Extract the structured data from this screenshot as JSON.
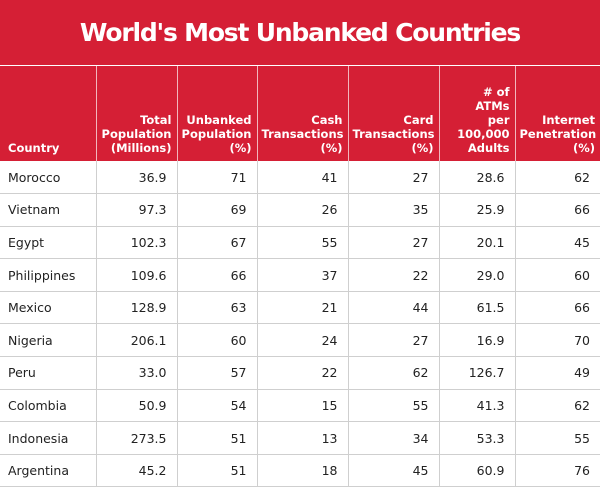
{
  "title": "World's Most Unbanked Countries",
  "colors": {
    "header_bg": "#d51f35",
    "header_text": "#ffffff",
    "body_text": "#222222",
    "grid": "#cfcfcf"
  },
  "headers": [
    [
      "Country"
    ],
    [
      "Total",
      "Population",
      "(Millions)"
    ],
    [
      "Unbanked",
      "Population",
      "(%)"
    ],
    [
      "Cash",
      "Transactions",
      "(%)"
    ],
    [
      "Card",
      "Transactions",
      "(%)"
    ],
    [
      "# of",
      "ATMs",
      "per",
      "100,000",
      "Adults"
    ],
    [
      "Internet",
      "Penetration",
      "(%)"
    ]
  ],
  "rows": [
    [
      "Morocco",
      "36.9",
      "71",
      "41",
      "27",
      "28.6",
      "62"
    ],
    [
      "Vietnam",
      "97.3",
      "69",
      "26",
      "35",
      "25.9",
      "66"
    ],
    [
      "Egypt",
      "102.3",
      "67",
      "55",
      "27",
      "20.1",
      "45"
    ],
    [
      "Philippines",
      "109.6",
      "66",
      "37",
      "22",
      "29.0",
      "60"
    ],
    [
      "Mexico",
      "128.9",
      "63",
      "21",
      "44",
      "61.5",
      "66"
    ],
    [
      "Nigeria",
      "206.1",
      "60",
      "24",
      "27",
      "16.9",
      "70"
    ],
    [
      "Peru",
      "33.0",
      "57",
      "22",
      "62",
      "126.7",
      "49"
    ],
    [
      "Colombia",
      "50.9",
      "54",
      "15",
      "55",
      "41.3",
      "62"
    ],
    [
      "Indonesia",
      "273.5",
      "51",
      "13",
      "34",
      "53.3",
      "55"
    ],
    [
      "Argentina",
      "45.2",
      "51",
      "18",
      "45",
      "60.9",
      "76"
    ]
  ],
  "chart_data": {
    "type": "table",
    "title": "World's Most Unbanked Countries",
    "columns": [
      "Country",
      "Total Population (Millions)",
      "Unbanked Population (%)",
      "Cash Transactions (%)",
      "Card Transactions (%)",
      "# of ATMs per 100,000 Adults",
      "Internet Penetration (%)"
    ],
    "rows": [
      [
        "Morocco",
        36.9,
        71,
        41,
        27,
        28.6,
        62
      ],
      [
        "Vietnam",
        97.3,
        69,
        26,
        35,
        25.9,
        66
      ],
      [
        "Egypt",
        102.3,
        67,
        55,
        27,
        20.1,
        45
      ],
      [
        "Philippines",
        109.6,
        66,
        37,
        22,
        29.0,
        60
      ],
      [
        "Mexico",
        128.9,
        63,
        21,
        44,
        61.5,
        66
      ],
      [
        "Nigeria",
        206.1,
        60,
        24,
        27,
        16.9,
        70
      ],
      [
        "Peru",
        33.0,
        57,
        22,
        62,
        126.7,
        49
      ],
      [
        "Colombia",
        50.9,
        54,
        15,
        55,
        41.3,
        62
      ],
      [
        "Indonesia",
        273.5,
        51,
        13,
        34,
        53.3,
        55
      ],
      [
        "Argentina",
        45.2,
        51,
        18,
        45,
        60.9,
        76
      ]
    ]
  }
}
